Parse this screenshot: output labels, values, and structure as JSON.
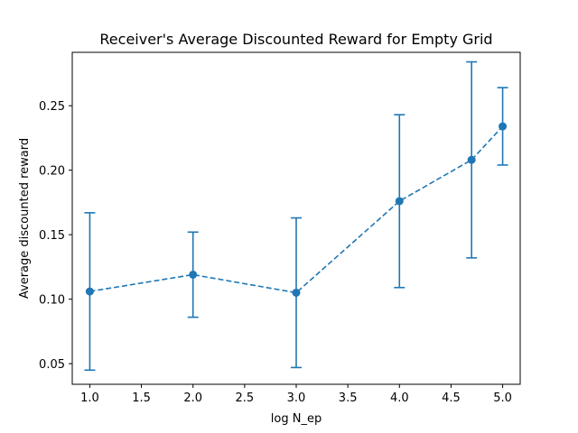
{
  "chart_data": {
    "type": "line",
    "title": "Receiver's Average Discounted Reward for Empty Grid",
    "xlabel": "log N_ep",
    "ylabel": "Average discounted reward",
    "xlim": [
      0.83,
      5.17
    ],
    "ylim": [
      0.034,
      0.2914
    ],
    "x_ticks": [
      1.0,
      1.5,
      2.0,
      2.5,
      3.0,
      3.5,
      4.0,
      4.5,
      5.0
    ],
    "x_tick_labels": [
      "1.0",
      "1.5",
      "2.0",
      "2.5",
      "3.0",
      "3.5",
      "4.0",
      "4.5",
      "5.0"
    ],
    "y_ticks": [
      0.05,
      0.1,
      0.15,
      0.2,
      0.25
    ],
    "y_tick_labels": [
      "0.05",
      "0.10",
      "0.15",
      "0.20",
      "0.25"
    ],
    "grid": false,
    "series": [
      {
        "x": [
          1.0,
          2.0,
          3.0,
          4.0,
          4.699,
          5.0
        ],
        "y": [
          0.106,
          0.119,
          0.105,
          0.176,
          0.208,
          0.234
        ],
        "err_low": [
          0.045,
          0.086,
          0.047,
          0.109,
          0.132,
          0.204
        ],
        "err_high": [
          0.167,
          0.152,
          0.163,
          0.243,
          0.284,
          0.264
        ],
        "line_style": "dashed",
        "marker": "circle",
        "color": "#1f77b4"
      }
    ]
  }
}
